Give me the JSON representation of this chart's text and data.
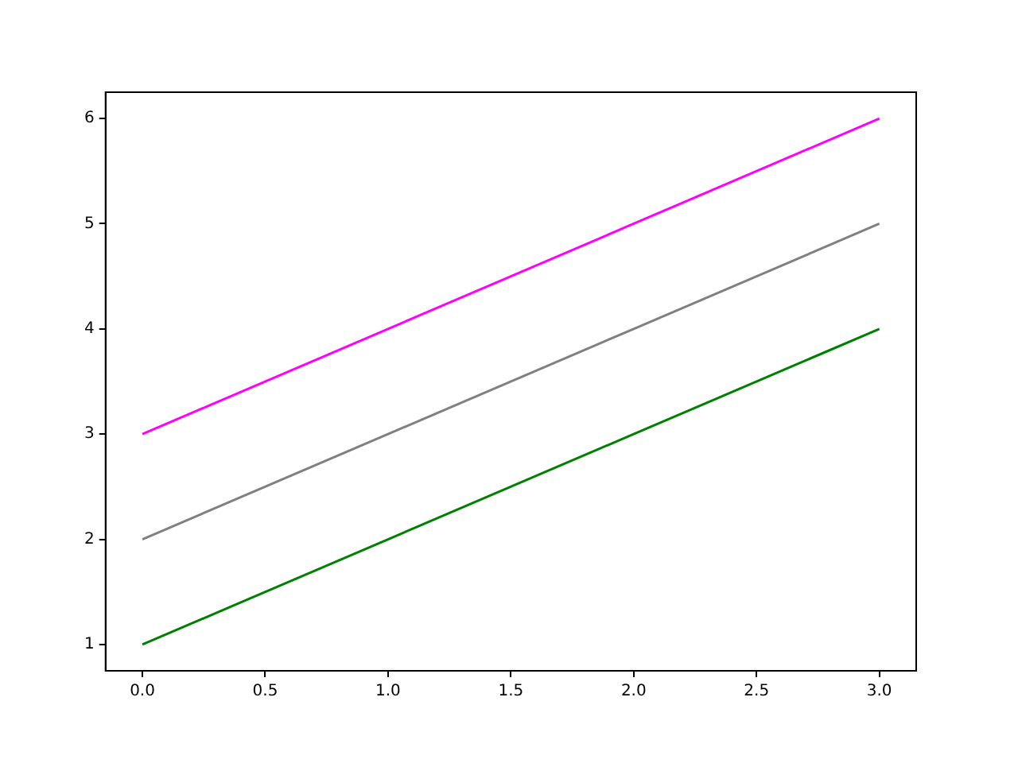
{
  "chart_data": {
    "type": "line",
    "x": [
      0,
      1,
      2,
      3
    ],
    "series": [
      {
        "color": "#ff00ff",
        "values": [
          3,
          4,
          5,
          6
        ]
      },
      {
        "color": "#808080",
        "values": [
          2,
          3,
          4,
          5
        ]
      },
      {
        "color": "#008000",
        "values": [
          1,
          2,
          3,
          4
        ]
      }
    ],
    "xlim": [
      -0.15,
      3.15
    ],
    "xticks": [
      {
        "value": 0,
        "label": "0.0"
      },
      {
        "value": 0.5,
        "label": "0.5"
      },
      {
        "value": 1,
        "label": "1.0"
      },
      {
        "value": 1.5,
        "label": "1.5"
      },
      {
        "value": 2,
        "label": "2.0"
      },
      {
        "value": 2.5,
        "label": "2.5"
      },
      {
        "value": 3,
        "label": "3.0"
      }
    ],
    "ylim": [
      0.75,
      6.25
    ],
    "yticks": [
      1,
      2,
      3,
      4,
      5,
      6
    ],
    "grid": false,
    "legend": false,
    "marker": "none",
    "line_style": "solid"
  }
}
